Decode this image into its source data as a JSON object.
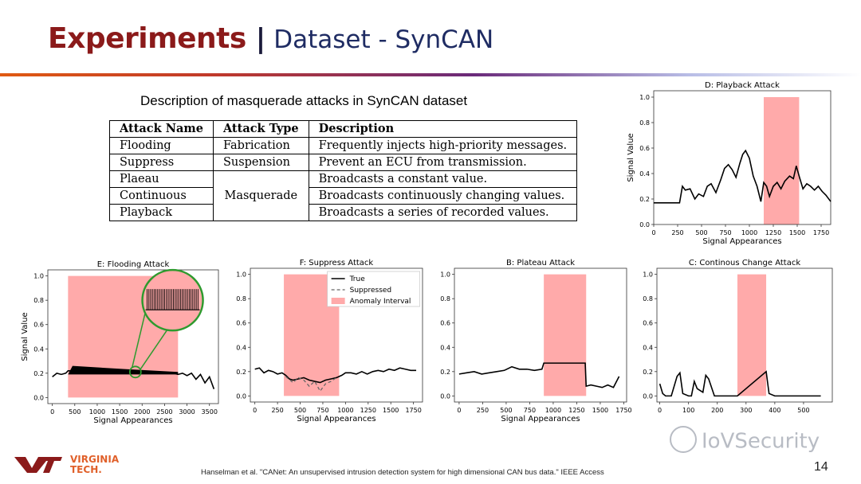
{
  "header": {
    "title": "Experiments",
    "separator": "|",
    "subtitle": "Dataset - SynCAN"
  },
  "table": {
    "caption": "Description of masquerade attacks in SynCAN dataset",
    "headers": [
      "Attack Name",
      "Attack Type",
      "Description"
    ],
    "rows": [
      [
        "Flooding",
        "Fabrication",
        "Frequently injects high-priority messages."
      ],
      [
        "Suppress",
        "Suspension",
        "Prevent an ECU from transmission."
      ],
      [
        "Plaeau",
        "Masquerade",
        "Broadcasts a constant value."
      ],
      [
        "Continuous",
        "",
        "Broadcasts continuously changing values."
      ],
      [
        "Playback",
        "",
        "Broadcasts a series of recorded values."
      ]
    ]
  },
  "footer": {
    "logo_line1": "VIRGINIA",
    "logo_line2": "TECH.",
    "citation": "Hanselman et al. \"CANet: An unsupervised intrusion detection system for high dimensional CAN bus data.\" IEEE Access",
    "page_number": "14",
    "watermark": "IoVSecurity"
  },
  "colors": {
    "title_red": "#8b1a1a",
    "subtitle_blue": "#1f2c63",
    "anomaly_fill": "#ffaaaa",
    "line": "#000000",
    "zoom_circle": "#2e9a2e"
  },
  "chart_data": [
    {
      "id": "playback",
      "type": "line",
      "title": "D: Playback Attack",
      "xlabel": "Signal Appearances",
      "ylabel": "Signal Value",
      "xlim": [
        0,
        1850
      ],
      "ylim": [
        0,
        1.05
      ],
      "xticks": [
        0,
        250,
        500,
        750,
        1000,
        1250,
        1500,
        1750
      ],
      "yticks": [
        0.0,
        0.2,
        0.4,
        0.6,
        0.8,
        1.0
      ],
      "anomaly_interval": [
        1150,
        1520
      ],
      "series": [
        {
          "x": [
            0,
            200,
            270,
            300,
            330,
            380,
            430,
            470,
            520,
            560,
            600,
            650,
            700,
            740,
            780,
            820,
            860,
            900,
            930,
            960,
            1000,
            1040,
            1080,
            1120,
            1150,
            1180,
            1210,
            1250,
            1290,
            1330,
            1370,
            1420,
            1460,
            1490,
            1520,
            1560,
            1600,
            1640,
            1680,
            1720,
            1760,
            1800,
            1850
          ],
          "y": [
            0.17,
            0.17,
            0.17,
            0.3,
            0.27,
            0.28,
            0.2,
            0.24,
            0.22,
            0.3,
            0.32,
            0.25,
            0.35,
            0.44,
            0.47,
            0.43,
            0.37,
            0.48,
            0.55,
            0.58,
            0.52,
            0.38,
            0.3,
            0.18,
            0.33,
            0.3,
            0.22,
            0.3,
            0.33,
            0.28,
            0.34,
            0.38,
            0.36,
            0.46,
            0.38,
            0.28,
            0.32,
            0.3,
            0.27,
            0.3,
            0.26,
            0.23,
            0.18
          ]
        }
      ]
    },
    {
      "id": "flooding",
      "type": "line",
      "title": "E: Flooding Attack",
      "xlabel": "Signal Appearances",
      "ylabel": "Signal Value",
      "xlim": [
        -100,
        3700
      ],
      "ylim": [
        -0.05,
        1.05
      ],
      "xticks": [
        0,
        500,
        1000,
        1500,
        2000,
        2500,
        3000,
        3500
      ],
      "yticks": [
        0.0,
        0.2,
        0.4,
        0.6,
        0.8,
        1.0
      ],
      "anomaly_interval": [
        350,
        2800
      ],
      "flood_band": {
        "x": [
          350,
          2800
        ],
        "y_low": 0.19,
        "y_high_start": 0.26,
        "y_high_end": 0.21
      },
      "series": [
        {
          "x": [
            0,
            100,
            200,
            300,
            350,
            600,
            900,
            1200,
            1500,
            1800,
            2100,
            2400,
            2700,
            2800,
            2900,
            3000,
            3100,
            3200,
            3300,
            3400,
            3500,
            3600
          ],
          "y": [
            0.17,
            0.2,
            0.19,
            0.2,
            0.22,
            0.22,
            0.2,
            0.21,
            0.2,
            0.21,
            0.21,
            0.2,
            0.2,
            0.19,
            0.2,
            0.18,
            0.2,
            0.15,
            0.19,
            0.12,
            0.17,
            0.07
          ]
        }
      ]
    },
    {
      "id": "suppress",
      "type": "line",
      "title": "F: Suppress Attack",
      "xlabel": "Signal Appearances",
      "ylabel": "",
      "xlim": [
        -50,
        1850
      ],
      "ylim": [
        -0.05,
        1.05
      ],
      "xticks": [
        0,
        250,
        500,
        750,
        1000,
        1250,
        1500,
        1750
      ],
      "yticks": [
        0.0,
        0.2,
        0.4,
        0.6,
        0.8,
        1.0
      ],
      "anomaly_interval": [
        320,
        930
      ],
      "legend": [
        "True",
        "Suppressed",
        "Anomaly Interval"
      ],
      "series": [
        {
          "name": "True",
          "x": [
            0,
            50,
            100,
            150,
            200,
            250,
            300,
            340,
            380,
            420,
            480,
            540,
            600,
            660,
            720,
            780,
            840,
            900,
            960,
            1000,
            1060,
            1120,
            1180,
            1240,
            1300,
            1360,
            1420,
            1480,
            1540,
            1600,
            1660,
            1720,
            1780
          ],
          "y": [
            0.22,
            0.23,
            0.19,
            0.21,
            0.2,
            0.18,
            0.19,
            0.17,
            0.14,
            0.13,
            0.14,
            0.15,
            0.13,
            0.12,
            0.11,
            0.13,
            0.14,
            0.15,
            0.17,
            0.19,
            0.19,
            0.18,
            0.2,
            0.18,
            0.2,
            0.21,
            0.2,
            0.22,
            0.21,
            0.23,
            0.22,
            0.21,
            0.21
          ]
        },
        {
          "name": "Suppressed",
          "x": [
            340,
            420,
            480,
            540,
            600,
            660,
            720,
            780,
            840,
            900
          ],
          "y": [
            0.16,
            0.11,
            0.15,
            0.13,
            0.08,
            0.12,
            0.04,
            0.1,
            0.12,
            0.15
          ]
        }
      ]
    },
    {
      "id": "plateau",
      "type": "line",
      "title": "B: Plateau Attack",
      "xlabel": "Signal Appearances",
      "ylabel": "",
      "xlim": [
        -50,
        1780
      ],
      "ylim": [
        -0.05,
        1.05
      ],
      "xticks": [
        0,
        250,
        500,
        750,
        1000,
        1250,
        1500,
        1750
      ],
      "yticks": [
        0.0,
        0.2,
        0.4,
        0.6,
        0.8,
        1.0
      ],
      "anomaly_interval": [
        900,
        1350
      ],
      "series": [
        {
          "x": [
            0,
            80,
            160,
            240,
            320,
            400,
            480,
            560,
            640,
            720,
            800,
            880,
            900,
            1340,
            1350,
            1400,
            1460,
            1520,
            1580,
            1640,
            1700
          ],
          "y": [
            0.18,
            0.19,
            0.2,
            0.18,
            0.19,
            0.2,
            0.21,
            0.24,
            0.22,
            0.22,
            0.21,
            0.22,
            0.27,
            0.27,
            0.08,
            0.09,
            0.08,
            0.07,
            0.09,
            0.07,
            0.16
          ]
        }
      ]
    },
    {
      "id": "continuous",
      "type": "line",
      "title": "C: Continous Change Attack",
      "xlabel": "",
      "ylabel": "",
      "xlim": [
        -10,
        600
      ],
      "ylim": [
        -0.05,
        1.05
      ],
      "xticks": [
        0,
        100,
        200,
        300,
        400,
        500
      ],
      "yticks": [
        0.0,
        0.2,
        0.4,
        0.6,
        0.8,
        1.0
      ],
      "anomaly_interval": [
        270,
        370
      ],
      "series": [
        {
          "x": [
            0,
            10,
            20,
            40,
            60,
            70,
            80,
            100,
            110,
            120,
            130,
            150,
            160,
            170,
            190,
            200,
            220,
            230,
            250,
            270,
            370,
            380,
            400,
            450,
            500,
            560
          ],
          "y": [
            0.1,
            0.02,
            0.0,
            0.0,
            0.16,
            0.19,
            0.02,
            0.0,
            0.0,
            0.12,
            0.06,
            0.03,
            0.17,
            0.14,
            0.0,
            0.0,
            0.0,
            0.0,
            0.0,
            0.0,
            0.2,
            0.02,
            0.0,
            0.0,
            0.0,
            0.0
          ]
        }
      ]
    }
  ]
}
